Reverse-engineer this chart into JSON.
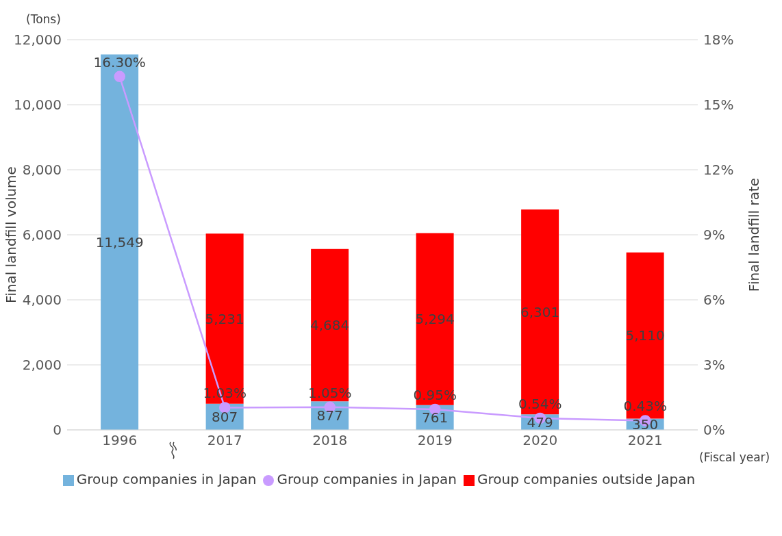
{
  "chart_data": {
    "type": "bar",
    "stacked": true,
    "categories": [
      "1996",
      "2017",
      "2018",
      "2019",
      "2020",
      "2021"
    ],
    "series": [
      {
        "name": "Group companies in Japan",
        "color": "#74b3dd",
        "values": [
          11549,
          807,
          877,
          761,
          479,
          350
        ],
        "value_labels": [
          "11,549",
          "807",
          "877",
          "761",
          "479",
          "350"
        ]
      },
      {
        "name": "Group companies outside Japan",
        "color": "#ff0000",
        "values": [
          null,
          5231,
          4684,
          5294,
          6301,
          5110
        ],
        "value_labels": [
          null,
          "5,231",
          "4,684",
          "5,294",
          "6,301",
          "5,110"
        ]
      },
      {
        "name": "Group companies in Japan",
        "type": "line",
        "axis": "y2",
        "color": "#c99bff",
        "values": [
          16.3,
          1.03,
          1.05,
          0.95,
          0.54,
          0.43
        ],
        "value_labels": [
          "16.30%",
          "1.03%",
          "1.05%",
          "0.95%",
          "0.54%",
          "0.43%"
        ]
      }
    ],
    "ylabel": "Final landfill volume",
    "y2label": "Final landfill rate",
    "ylim": [
      0,
      12000
    ],
    "yticks": [
      {
        "value": 0,
        "label": "0"
      },
      {
        "value": 2000,
        "label": "2,000"
      },
      {
        "value": 4000,
        "label": "4,000"
      },
      {
        "value": 6000,
        "label": "6,000"
      },
      {
        "value": 8000,
        "label": "8,000"
      },
      {
        "value": 10000,
        "label": "10,000"
      },
      {
        "value": 12000,
        "label": "12,000"
      }
    ],
    "y2lim": [
      0,
      18
    ],
    "y2ticks": [
      {
        "value": 0,
        "label": "0%"
      },
      {
        "value": 3,
        "label": "3%"
      },
      {
        "value": 6,
        "label": "6%"
      },
      {
        "value": 9,
        "label": "9%"
      },
      {
        "value": 12,
        "label": "12%"
      },
      {
        "value": 15,
        "label": "15%"
      },
      {
        "value": 18,
        "label": "18%"
      }
    ],
    "annotations": [
      "(Tons)",
      "(Fiscal year)"
    ],
    "grid": "y",
    "legend": "bottom",
    "marker": "circle",
    "line_style": "solid"
  }
}
